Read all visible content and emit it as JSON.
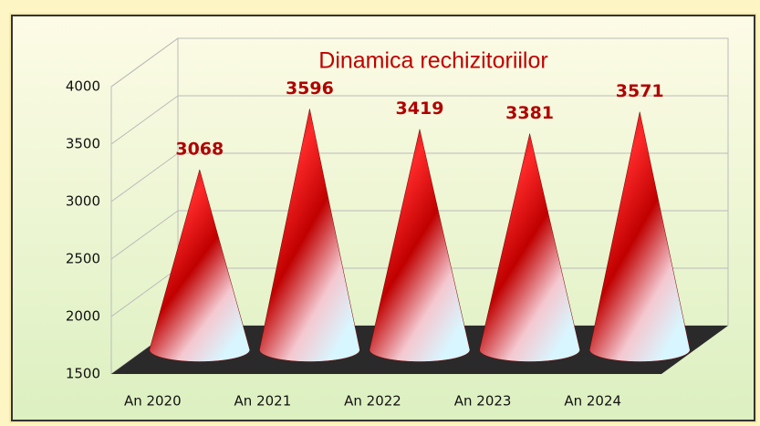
{
  "chart_data": {
    "type": "cone",
    "title": "Dinamica rechizitoriilor",
    "categories": [
      "An 2020",
      "An 2021",
      "An 2022",
      "An 2023",
      "An 2024"
    ],
    "values": [
      3068,
      3596,
      3419,
      3381,
      3571
    ],
    "color": "#cc0000",
    "ylim": [
      1500,
      4000
    ],
    "yticks": [
      1500,
      2000,
      2500,
      3000,
      3500,
      4000
    ],
    "grid": true
  }
}
